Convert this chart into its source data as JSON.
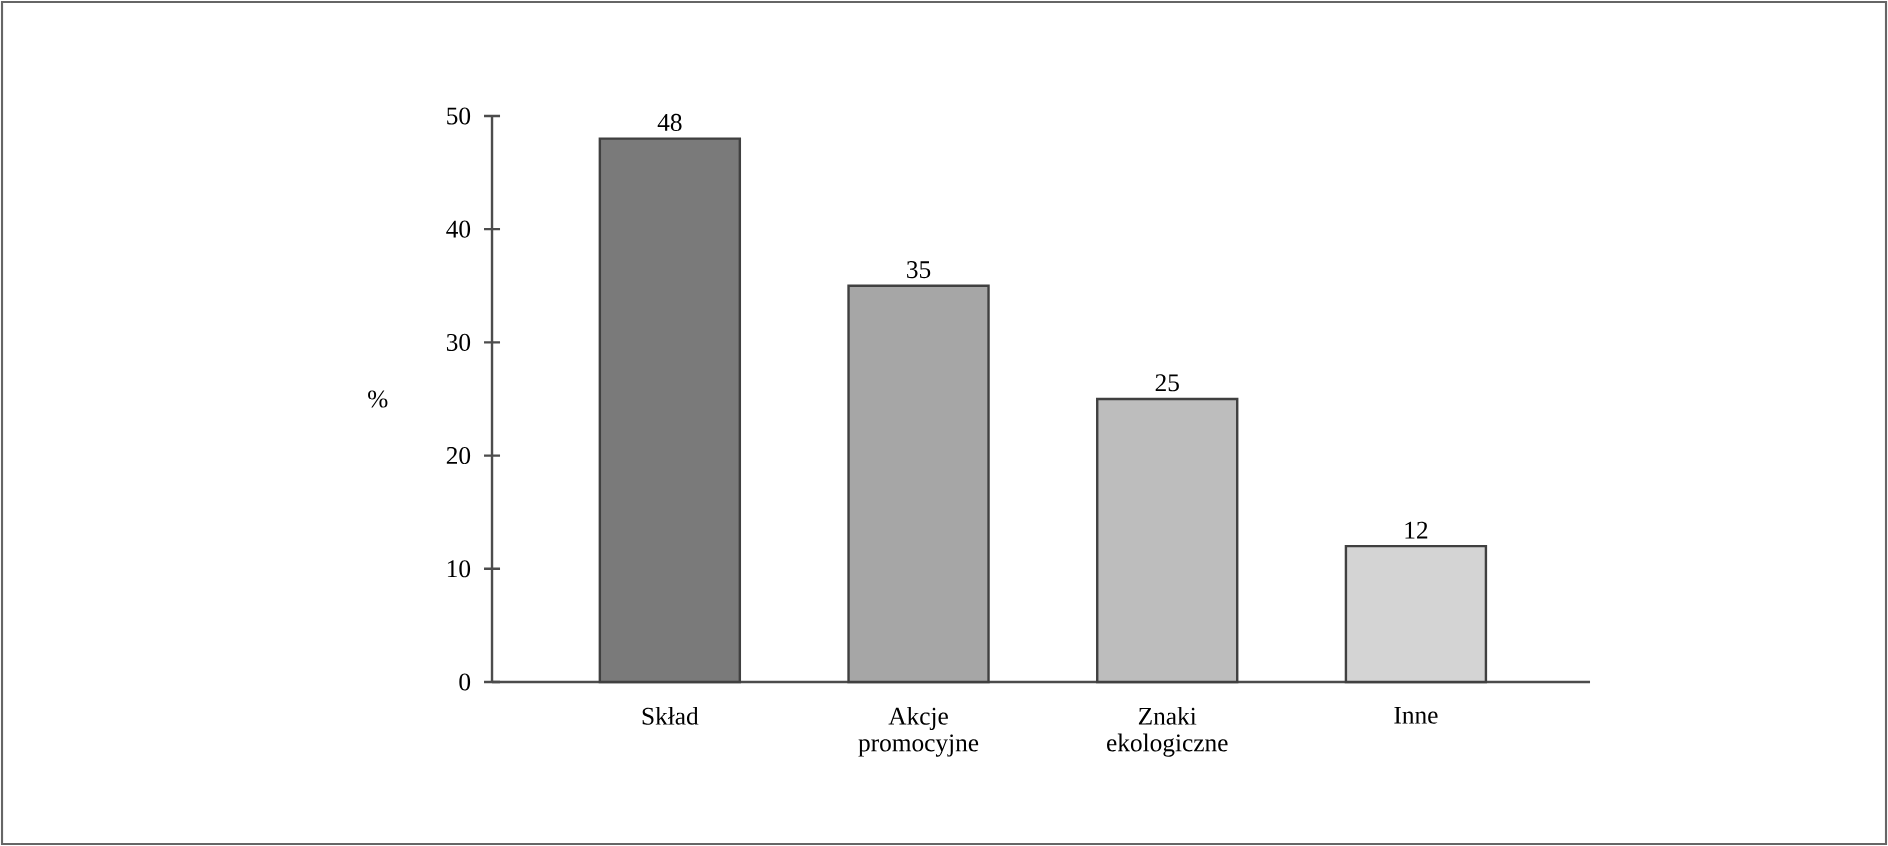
{
  "chart_data": {
    "type": "bar",
    "categories": [
      "Skład",
      "Akcje promocyjne",
      "Znaki ekologiczne",
      "Inne"
    ],
    "values": [
      48,
      35,
      25,
      12
    ],
    "colors": [
      "#7a7a7a",
      "#a6a6a6",
      "#bdbdbd",
      "#d4d4d4"
    ],
    "ylabel": "%",
    "ylim": [
      0,
      50
    ],
    "yticks": [
      0,
      10,
      20,
      30,
      40,
      50
    ],
    "data_labels": true,
    "grid": false
  }
}
